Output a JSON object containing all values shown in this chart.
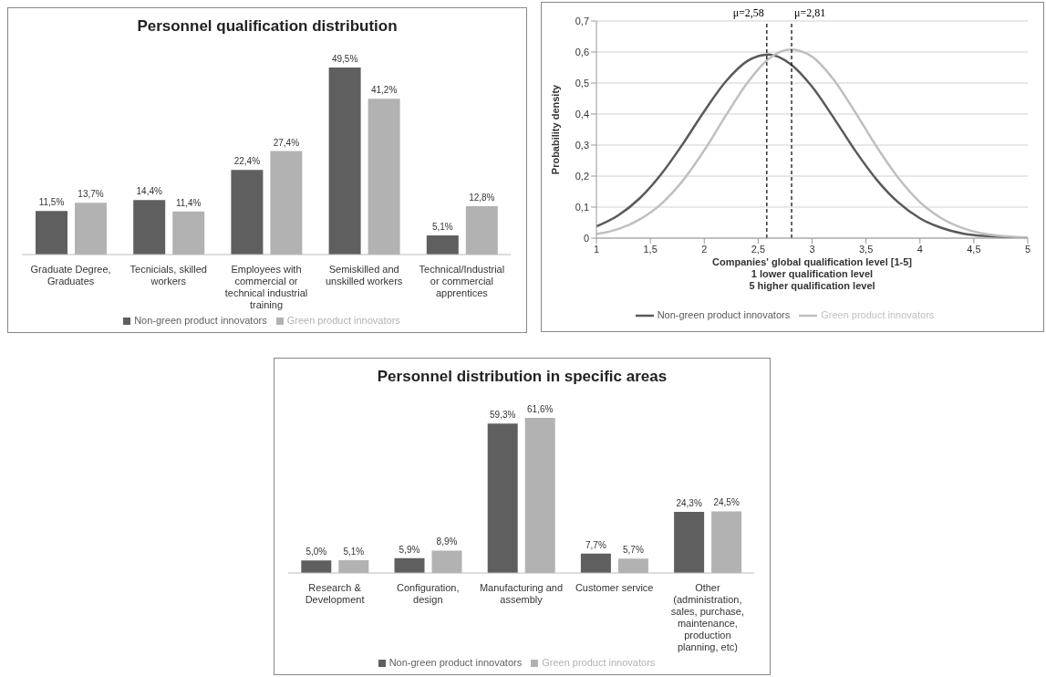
{
  "chart_data": [
    {
      "type": "bar",
      "title": "Personnel qualification distribution",
      "categories": [
        "Graduate Degree, Graduates",
        "Tecnicials, skilled workers",
        "Employees with commercial or technical industrial training",
        "Semiskilled and unskilled workers",
        "Technical/Industrial or commercial apprentices"
      ],
      "series": [
        {
          "name": "Non-green product innovators",
          "color": "#5f5f5f",
          "values": [
            11.5,
            14.4,
            22.4,
            49.5,
            5.1
          ],
          "value_labels": [
            "11,5%",
            "14,4%",
            "22,4%",
            "49,5%",
            "5,1%"
          ]
        },
        {
          "name": "Green product innovators",
          "color": "#b2b2b2",
          "values": [
            13.7,
            11.4,
            27.4,
            41.2,
            12.8
          ],
          "value_labels": [
            "13,7%",
            "11,4%",
            "27,4%",
            "41,2%",
            "12,8%"
          ]
        }
      ],
      "legend": "bottom",
      "tick_labels": "x",
      "grid": false
    },
    {
      "type": "line",
      "xlabel": "Companies' global qualification level [1-5]\n1 lower qualification level\n5 higher qualification level",
      "ylabel": "Probability density",
      "x": [
        1.0,
        1.2,
        1.4,
        1.6,
        1.8,
        2.0,
        2.2,
        2.4,
        2.6,
        2.8,
        3.0,
        3.2,
        3.4,
        3.6,
        3.8,
        4.0,
        4.2,
        4.4,
        4.6,
        4.8,
        5.0
      ],
      "series": [
        {
          "name": "Non-green product innovators",
          "color": "#595959",
          "values": [
            0.038,
            0.073,
            0.128,
            0.206,
            0.303,
            0.409,
            0.505,
            0.571,
            0.592,
            0.561,
            0.488,
            0.388,
            0.282,
            0.188,
            0.115,
            0.064,
            0.033,
            0.015,
            0.007,
            0.003,
            0.001
          ]
        },
        {
          "name": "Green product innovators",
          "color": "#bfbfbf",
          "values": [
            0.013,
            0.029,
            0.06,
            0.11,
            0.185,
            0.283,
            0.395,
            0.501,
            0.579,
            0.608,
            0.585,
            0.511,
            0.406,
            0.294,
            0.194,
            0.116,
            0.064,
            0.032,
            0.014,
            0.006,
            0.002
          ]
        }
      ],
      "xlim": [
        1,
        5
      ],
      "xticks": [
        1,
        {
          "value": 1.5,
          "label": "1,5"
        },
        2,
        {
          "value": 2.5,
          "label": "2,5"
        },
        3,
        {
          "value": 3.5,
          "label": "3,5"
        },
        4,
        {
          "value": 4.5,
          "label": "4,5"
        },
        5
      ],
      "ylim": [
        0,
        0.7
      ],
      "yticks": [
        0,
        {
          "value": 0.1,
          "label": "0,1"
        },
        {
          "value": 0.2,
          "label": "0,2"
        },
        {
          "value": 0.3,
          "label": "0,3"
        },
        {
          "value": 0.4,
          "label": "0,4"
        },
        {
          "value": 0.5,
          "label": "0,5"
        },
        {
          "value": 0.6,
          "label": "0,6"
        },
        {
          "value": 0.7,
          "label": "0,7"
        }
      ],
      "ref_lines": [
        {
          "axis": "x",
          "value": 2.58,
          "label": "μ=2,58",
          "color": "#000000",
          "line_style": "dashed"
        },
        {
          "axis": "x",
          "value": 2.81,
          "label": "μ=2,81",
          "color": "#000000",
          "line_style": "dashed"
        }
      ],
      "grid": "y",
      "legend": "bottom",
      "marker": "none",
      "line_style": "solid"
    },
    {
      "type": "bar",
      "title": "Personnel distribution in specific areas",
      "categories": [
        "Research & Development",
        "Configuration, design",
        "Manufacturing and assembly",
        "Customer service",
        "Other (administration, sales, purchase, maintenance, production planning, etc)"
      ],
      "series": [
        {
          "name": "Non-green product innovators",
          "color": "#5f5f5f",
          "values": [
            5.0,
            5.9,
            59.3,
            7.7,
            24.3
          ],
          "value_labels": [
            "5,0%",
            "5,9%",
            "59,3%",
            "7,7%",
            "24,3%"
          ]
        },
        {
          "name": "Green product innovators",
          "color": "#b2b2b2",
          "values": [
            5.1,
            8.9,
            61.6,
            5.7,
            24.5
          ],
          "value_labels": [
            "5,1%",
            "8,9%",
            "61,6%",
            "5,7%",
            "24,5%"
          ]
        }
      ],
      "legend": "bottom",
      "tick_labels": "x",
      "grid": false
    }
  ]
}
